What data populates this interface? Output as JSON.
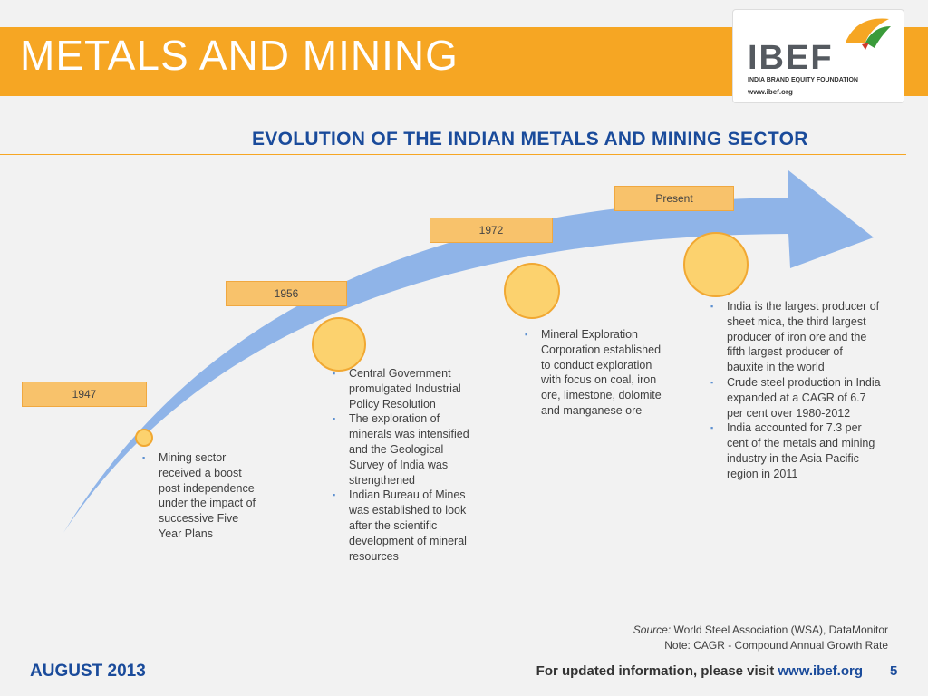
{
  "header": {
    "title": "METALS AND MINING",
    "logo_text": "IBEF",
    "logo_subtitle": "INDIA BRAND EQUITY FOUNDATION",
    "logo_url": "www.ibef.org"
  },
  "section_title": "EVOLUTION OF THE INDIAN METALS AND MINING SECTOR",
  "timeline": [
    {
      "year": "1947",
      "bullets": [
        "Mining sector received a boost post independence under the impact of successive Five Year Plans"
      ]
    },
    {
      "year": "1956",
      "bullets": [
        "Central Government promulgated Industrial Policy Resolution",
        "The exploration of minerals was intensified and the Geological Survey of India was strengthened",
        "Indian Bureau of Mines was established to look after the scientific development of mineral resources"
      ]
    },
    {
      "year": "1972",
      "bullets": [
        "Mineral Exploration Corporation established to conduct exploration with focus on coal, iron ore, limestone, dolomite and manganese ore"
      ]
    },
    {
      "year": "Present",
      "bullets": [
        "India is the largest producer of sheet mica, the third largest producer of iron ore and the fifth largest producer of bauxite in the world",
        "Crude steel production in India expanded at a CAGR of 6.7 per cent over 1980-2012",
        "India accounted for 7.3 per cent of the metals and mining industry in the Asia-Pacific region in 2011"
      ]
    }
  ],
  "source_label": "Source:",
  "source_text": "World Steel Association (WSA), DataMonitor",
  "note": "Note: CAGR - Compound Annual Growth Rate",
  "footer": {
    "date": "AUGUST 2013",
    "info_prefix": "For updated information, please visit",
    "info_url": "www.ibef.org",
    "page": "5"
  },
  "colors": {
    "orange": "#f6a623",
    "arrow": "#8fb4e8",
    "navy": "#1a4b9b"
  }
}
